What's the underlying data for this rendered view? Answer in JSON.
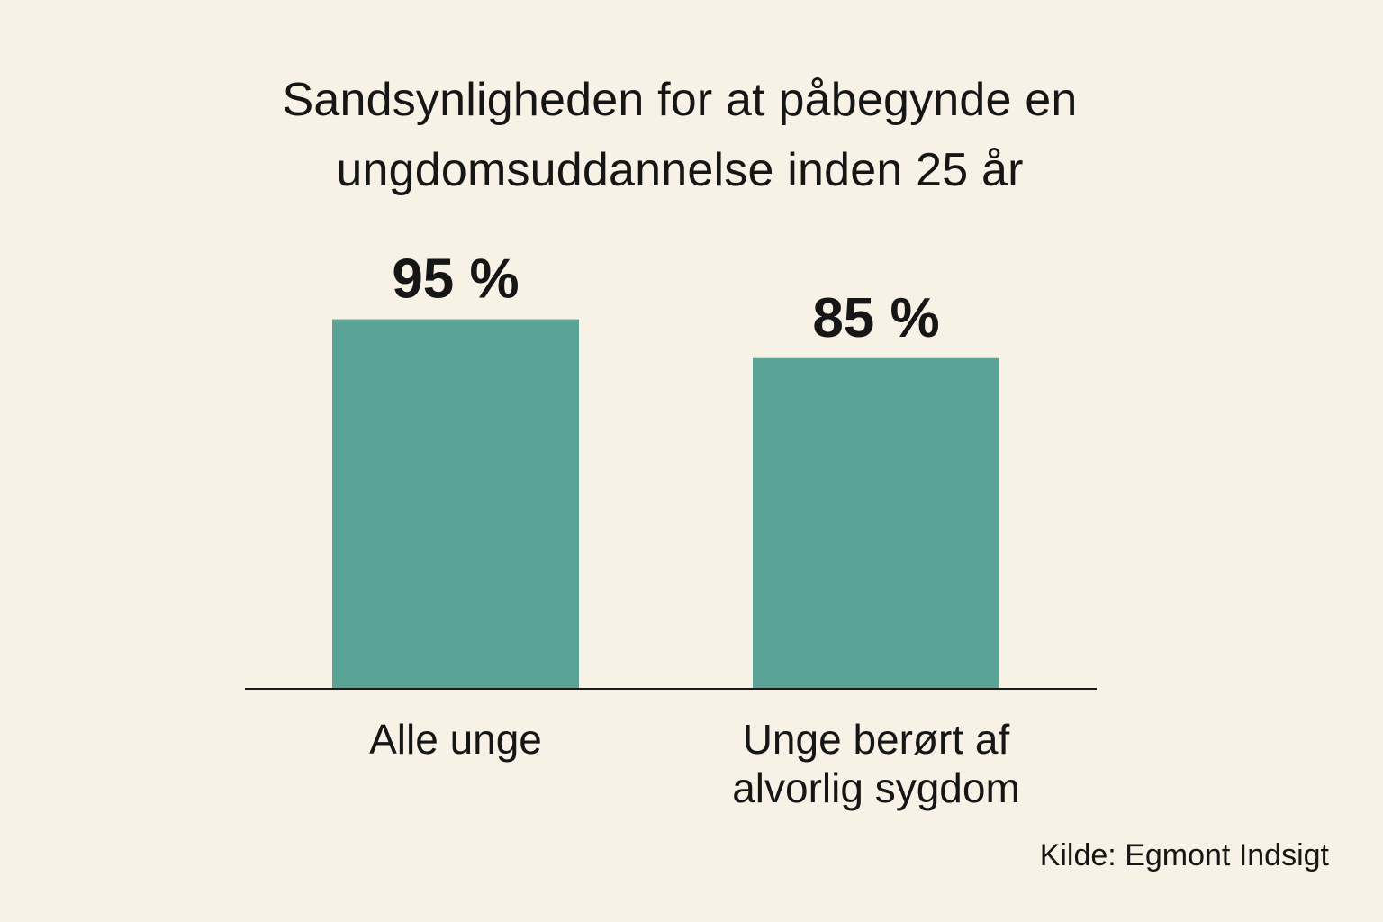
{
  "chart_data": {
    "type": "bar",
    "title_lines": [
      "Sandsynligheden for at påbegynde en",
      "ungdomsuddannelse inden 25 år"
    ],
    "categories": [
      [
        "Alle unge"
      ],
      [
        "Unge berørt af",
        "alvorlig sygdom"
      ]
    ],
    "values": [
      95,
      85
    ],
    "value_labels": [
      "95 %",
      "85 %"
    ],
    "ylim": [
      0,
      100
    ],
    "grid": false,
    "bar_color": "#5ba396",
    "axis_color": "#1a1a1a",
    "source": "Kilde: Egmont Indsigt"
  }
}
